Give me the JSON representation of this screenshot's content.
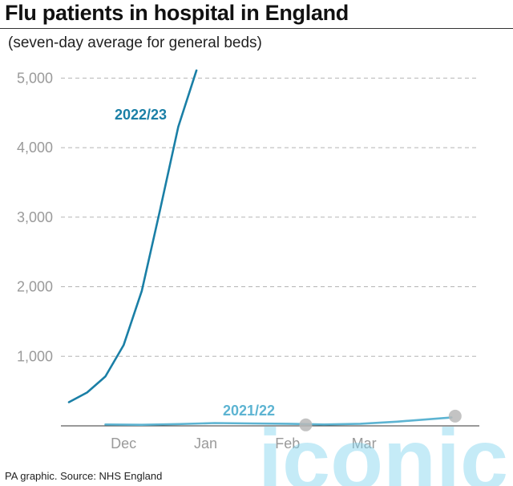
{
  "header": {
    "title": "Flu patients in hospital in England",
    "subtitle": "(seven-day average for general beds)"
  },
  "footer": {
    "source": "PA graphic. Source: NHS England"
  },
  "watermark": {
    "text": "iconic",
    "color": "#7fd3ef"
  },
  "chart_data": {
    "type": "line",
    "title": "Flu patients in hospital in England",
    "subtitle": "(seven-day average for general beds)",
    "xlabel": "",
    "ylabel": "",
    "x_axis": {
      "labels": [
        "Dec",
        "Jan",
        "Feb",
        "Mar"
      ],
      "note": "x values are in weeks from the start of the period shown",
      "xlim": [
        0,
        22
      ]
    },
    "ylim": [
      0,
      5200
    ],
    "yticks": [
      1000,
      2000,
      3000,
      4000,
      5000
    ],
    "ytick_labels": [
      "1,000",
      "2,000",
      "3,000",
      "4,000",
      "5,000"
    ],
    "grid": "horizontal-dashed",
    "series": [
      {
        "name": "2022/23",
        "color": "#1a7fa6",
        "x": [
          0,
          1,
          2,
          3,
          4,
          5,
          6,
          7
        ],
        "values": [
          340,
          480,
          710,
          1160,
          1940,
          3100,
          4300,
          5110
        ]
      },
      {
        "name": "2021/22",
        "color": "#5db4d2",
        "x": [
          2,
          4,
          6,
          8,
          10,
          12,
          14,
          16,
          18,
          20,
          21
        ],
        "values": [
          20,
          15,
          25,
          40,
          35,
          30,
          20,
          30,
          60,
          100,
          120
        ],
        "end_marker": true
      }
    ]
  }
}
